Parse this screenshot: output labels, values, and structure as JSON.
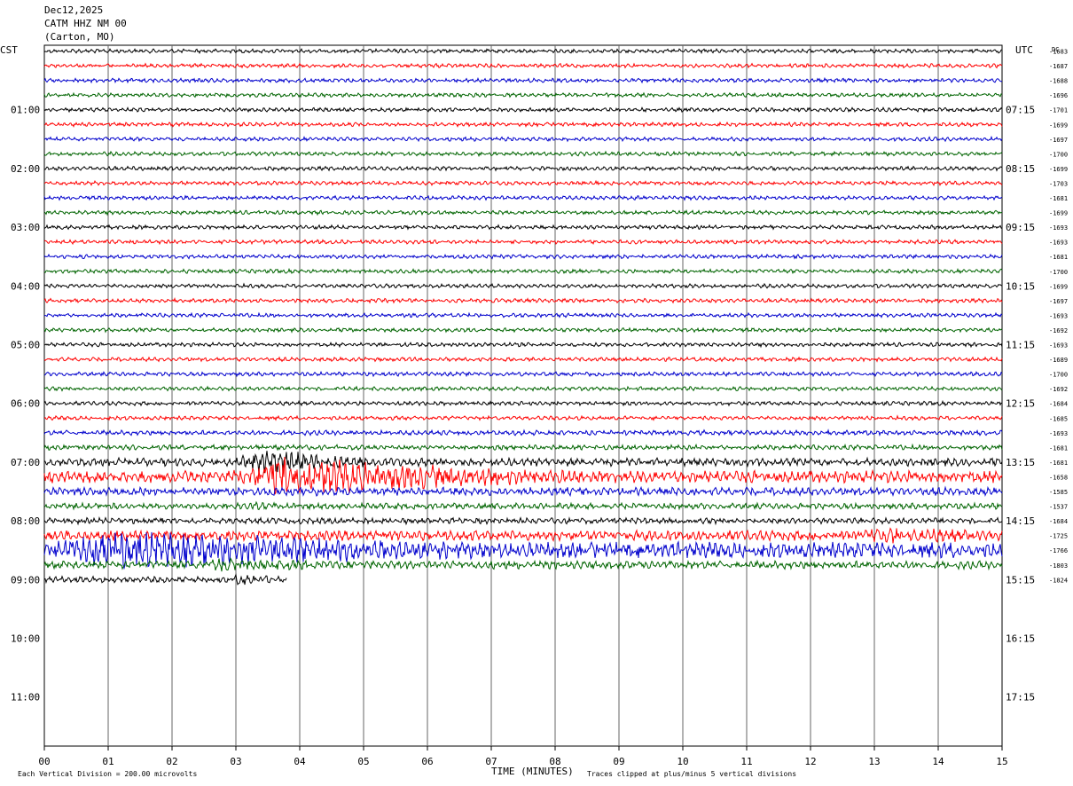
{
  "header": {
    "date": "Dec12,2025",
    "station": "CATM HHZ NM 00",
    "location": "(Carton, MO)"
  },
  "left_zone": "CST",
  "right_zone": "UTC",
  "dc_header": "DC",
  "footer": {
    "left": "Each Vertical Division =  200.00 microvolts",
    "center": "TIME (MINUTES)",
    "right": "Traces clipped at plus/minus 5 vertical divisions"
  },
  "colors": {
    "trace_cycle": [
      "#000000",
      "#ff0000",
      "#0000cc",
      "#006400"
    ],
    "grid": "#666666"
  },
  "chart_data": {
    "type": "helicorder",
    "title": "Dec12,2025 CATM HHZ NM 00 (Carton, MO)",
    "xlabel": "TIME (MINUTES)",
    "x_ticks": [
      "00",
      "01",
      "02",
      "03",
      "04",
      "05",
      "06",
      "07",
      "08",
      "09",
      "10",
      "11",
      "12",
      "13",
      "14",
      "15"
    ],
    "xlim": [
      0,
      15
    ],
    "minutes_per_line": 15,
    "lines_per_hour": 4,
    "total_hour_rows": 12,
    "left_hour_labels": [
      "",
      "01:00",
      "02:00",
      "03:00",
      "04:00",
      "05:00",
      "06:00",
      "07:00",
      "08:00",
      "09:00",
      "10:00",
      "11:00"
    ],
    "right_hour_labels": [
      "",
      "07:15",
      "08:15",
      "09:15",
      "10:15",
      "11:15",
      "12:15",
      "13:15",
      "14:15",
      "15:15",
      "16:15",
      "17:15"
    ],
    "dc_offsets": [
      -1683,
      -1687,
      -1688,
      -1696,
      -1701,
      -1699,
      -1697,
      -1700,
      -1699,
      -1703,
      -1681,
      -1699,
      -1693,
      -1693,
      -1681,
      -1700,
      -1699,
      -1697,
      -1693,
      -1692,
      -1693,
      -1689,
      -1700,
      -1692,
      -1684,
      -1685,
      -1693,
      -1681,
      -1681,
      -1658,
      -1585,
      -1537,
      -1684,
      -1725,
      -1766,
      -1803,
      -1824
    ],
    "trace_amplitude": [
      2,
      2,
      2,
      2,
      2,
      2,
      2,
      2,
      2,
      2,
      2,
      2,
      2,
      2,
      2,
      2,
      2,
      2,
      2,
      2,
      2,
      2,
      2,
      2,
      2,
      2,
      2.5,
      2.5,
      4,
      6,
      4,
      3,
      3,
      5,
      8,
      4,
      3
    ],
    "data_end_minutes_last_trace": 3.8,
    "events": [
      {
        "trace": 28,
        "start_min": 3.0,
        "end_min": 5.5,
        "peak": 14
      },
      {
        "trace": 29,
        "start_min": 2.9,
        "end_min": 8.6,
        "peak": 20
      },
      {
        "trace": 30,
        "start_min": 3.2,
        "end_min": 5.0,
        "peak": 5
      },
      {
        "trace": 31,
        "start_min": 3.1,
        "end_min": 4.2,
        "peak": 4
      },
      {
        "trace": 34,
        "start_min": 0.0,
        "end_min": 7.2,
        "peak": 20
      },
      {
        "trace": 35,
        "start_min": 2.5,
        "end_min": 4.6,
        "peak": 8
      },
      {
        "trace": 36,
        "start_min": 2.9,
        "end_min": 3.8,
        "peak": 6
      },
      {
        "trace": 33,
        "start_min": 12.8,
        "end_min": 15.0,
        "peak": 9
      }
    ],
    "unit_note": "Each Vertical Division =  200.00 microvolts"
  }
}
